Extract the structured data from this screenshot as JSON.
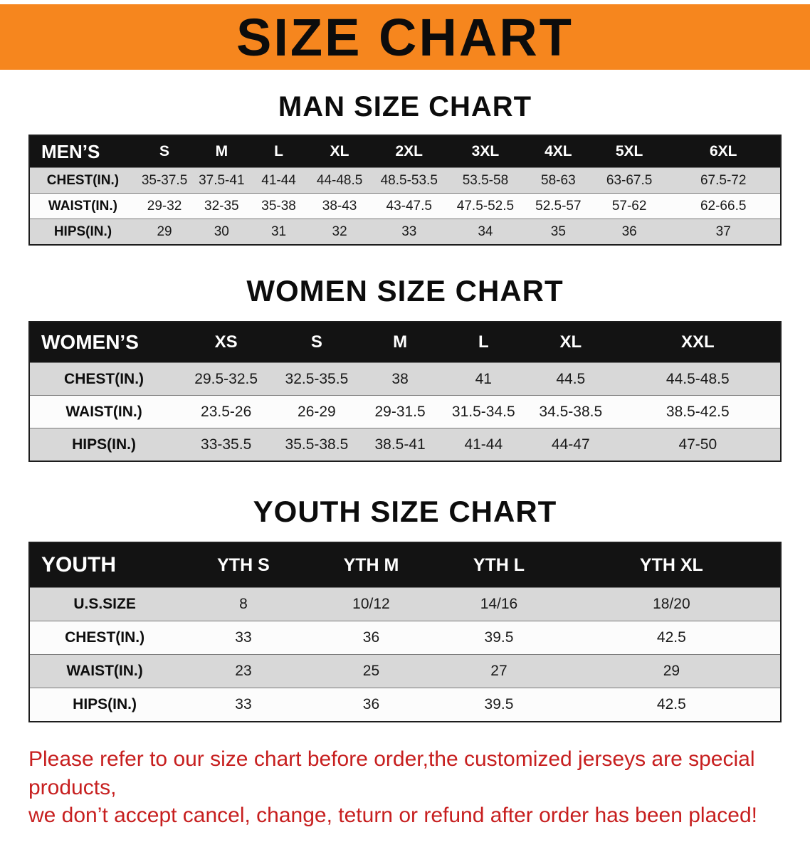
{
  "banner": {
    "title": "SIZE CHART"
  },
  "colors": {
    "banner_orange": "#F6861E",
    "table_header_black": "#131313",
    "row_gray": "#D8D8D8",
    "row_white": "#FCFCFC",
    "notice_red": "#C71F1F"
  },
  "sections": [
    {
      "id": "men",
      "heading": "MAN SIZE CHART",
      "table": {
        "header": [
          "MEN’S",
          "S",
          "M",
          "L",
          "XL",
          "2XL",
          "3XL",
          "4XL",
          "5XL",
          "6XL"
        ],
        "rows": [
          {
            "label": "CHEST(IN.)",
            "values": [
              "35-37.5",
              "37.5-41",
              "41-44",
              "44-48.5",
              "48.5-53.5",
              "53.5-58",
              "58-63",
              "63-67.5",
              "67.5-72"
            ]
          },
          {
            "label": "WAIST(IN.)",
            "values": [
              "29-32",
              "32-35",
              "35-38",
              "38-43",
              "43-47.5",
              "47.5-52.5",
              "52.5-57",
              "57-62",
              "62-66.5"
            ]
          },
          {
            "label": "HIPS(IN.)",
            "values": [
              "29",
              "30",
              "31",
              "32",
              "33",
              "34",
              "35",
              "36",
              "37"
            ]
          }
        ]
      }
    },
    {
      "id": "women",
      "heading": "WOMEN SIZE CHART",
      "table": {
        "header": [
          "WOMEN’S",
          "XS",
          "S",
          "M",
          "L",
          "XL",
          "XXL"
        ],
        "rows": [
          {
            "label": "CHEST(IN.)",
            "values": [
              "29.5-32.5",
              "32.5-35.5",
              "38",
              "41",
              "44.5",
              "44.5-48.5"
            ]
          },
          {
            "label": "WAIST(IN.)",
            "values": [
              "23.5-26",
              "26-29",
              "29-31.5",
              "31.5-34.5",
              "34.5-38.5",
              "38.5-42.5"
            ]
          },
          {
            "label": "HIPS(IN.)",
            "values": [
              "33-35.5",
              "35.5-38.5",
              "38.5-41",
              "41-44",
              "44-47",
              "47-50"
            ]
          }
        ]
      }
    },
    {
      "id": "youth",
      "heading": "YOUTH SIZE CHART",
      "table": {
        "header": [
          "YOUTH",
          "YTH S",
          "YTH M",
          "YTH L",
          "YTH XL"
        ],
        "rows": [
          {
            "label": "U.S.SIZE",
            "values": [
              "8",
              "10/12",
              "14/16",
              "18/20"
            ]
          },
          {
            "label": "CHEST(IN.)",
            "values": [
              "33",
              "36",
              "39.5",
              "42.5"
            ]
          },
          {
            "label": "WAIST(IN.)",
            "values": [
              "23",
              "25",
              "27",
              "29"
            ]
          },
          {
            "label": "HIPS(IN.)",
            "values": [
              "33",
              "36",
              "39.5",
              "42.5"
            ]
          }
        ]
      }
    }
  ],
  "footer": {
    "line1": "Please refer to our size chart before order,the customized jerseys are special products,",
    "line2": "we don’t accept cancel, change, teturn or refund after order has been placed!"
  }
}
